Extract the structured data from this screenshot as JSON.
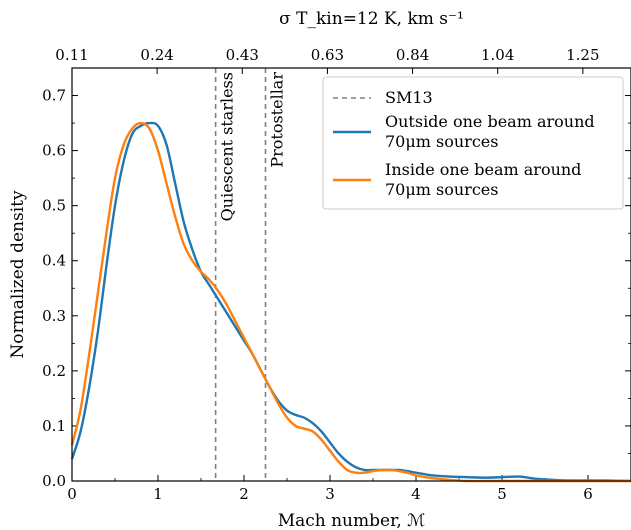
{
  "chart_data": {
    "type": "line",
    "xlabel": "Mach number, ℳ",
    "ylabel": "Normalized density",
    "top_xlabel": "σ T_kin=12 K,  km s⁻¹",
    "xlim": [
      0,
      6.5
    ],
    "ylim": [
      0,
      0.75
    ],
    "x_ticks": [
      "0",
      "1",
      "2",
      "3",
      "4",
      "5",
      "6"
    ],
    "y_ticks": [
      "0.0",
      "0.1",
      "0.2",
      "0.3",
      "0.4",
      "0.5",
      "0.6",
      "0.7"
    ],
    "top_ticks": [
      {
        "label": "0.11",
        "x": 0.0
      },
      {
        "label": "0.24",
        "x": 0.99
      },
      {
        "label": "0.43",
        "x": 1.98
      },
      {
        "label": "0.63",
        "x": 2.97
      },
      {
        "label": "0.84",
        "x": 3.96
      },
      {
        "label": "1.04",
        "x": 4.95
      },
      {
        "label": "1.25",
        "x": 5.94
      }
    ],
    "vlines": [
      {
        "x": 1.67,
        "label": "Quiescent starless"
      },
      {
        "x": 2.25,
        "label": "Protostellar"
      }
    ],
    "legend": {
      "placement": "top-right",
      "entries": [
        {
          "label_lines": [
            "SM13"
          ],
          "color": "#808080",
          "dash": true
        },
        {
          "label_lines": [
            "Outside one beam around",
            "70μm sources"
          ],
          "color": "#1f77b4",
          "dash": false
        },
        {
          "label_lines": [
            "Inside one beam around",
            "70μm sources"
          ],
          "color": "#ff7f0e",
          "dash": false
        }
      ]
    },
    "series": [
      {
        "name": "Outside one beam around 70μm sources",
        "color": "#1f77b4",
        "x": [
          0,
          0.1,
          0.2,
          0.3,
          0.4,
          0.5,
          0.6,
          0.7,
          0.8,
          0.9,
          1.0,
          1.1,
          1.2,
          1.3,
          1.4,
          1.5,
          1.6,
          1.7,
          1.8,
          1.9,
          2.0,
          2.1,
          2.2,
          2.3,
          2.4,
          2.5,
          2.6,
          2.7,
          2.8,
          2.9,
          3.0,
          3.1,
          3.2,
          3.3,
          3.4,
          3.5,
          3.6,
          3.7,
          3.8,
          3.9,
          4.0,
          4.2,
          4.4,
          4.6,
          4.8,
          5.0,
          5.2,
          5.4,
          5.6,
          5.8,
          6.0,
          6.2,
          6.5
        ],
        "values": [
          0.04,
          0.09,
          0.17,
          0.27,
          0.39,
          0.5,
          0.58,
          0.63,
          0.645,
          0.65,
          0.645,
          0.61,
          0.54,
          0.47,
          0.42,
          0.38,
          0.355,
          0.33,
          0.305,
          0.28,
          0.255,
          0.23,
          0.2,
          0.17,
          0.145,
          0.128,
          0.12,
          0.115,
          0.105,
          0.09,
          0.07,
          0.05,
          0.035,
          0.025,
          0.02,
          0.02,
          0.02,
          0.02,
          0.02,
          0.018,
          0.015,
          0.01,
          0.008,
          0.007,
          0.006,
          0.007,
          0.008,
          0.004,
          0.002,
          0.001,
          0.001,
          0.001,
          0.0
        ]
      },
      {
        "name": "Inside one beam around 70μm sources",
        "color": "#ff7f0e",
        "x": [
          0,
          0.1,
          0.2,
          0.3,
          0.4,
          0.5,
          0.6,
          0.7,
          0.8,
          0.9,
          1.0,
          1.1,
          1.2,
          1.3,
          1.4,
          1.5,
          1.6,
          1.7,
          1.8,
          1.9,
          2.0,
          2.1,
          2.2,
          2.3,
          2.4,
          2.5,
          2.6,
          2.7,
          2.8,
          2.9,
          3.0,
          3.1,
          3.2,
          3.3,
          3.4,
          3.5,
          3.6,
          3.7,
          3.8,
          3.9,
          4.0,
          4.2,
          4.4,
          4.6,
          4.8,
          5.0,
          5.2,
          5.4,
          5.6,
          5.8,
          6.0,
          6.2,
          6.5
        ],
        "values": [
          0.065,
          0.13,
          0.23,
          0.34,
          0.45,
          0.55,
          0.61,
          0.64,
          0.65,
          0.64,
          0.6,
          0.54,
          0.48,
          0.43,
          0.4,
          0.38,
          0.365,
          0.345,
          0.32,
          0.29,
          0.26,
          0.23,
          0.2,
          0.17,
          0.14,
          0.115,
          0.1,
          0.095,
          0.09,
          0.075,
          0.055,
          0.035,
          0.02,
          0.015,
          0.015,
          0.018,
          0.02,
          0.02,
          0.018,
          0.015,
          0.01,
          0.005,
          0.002,
          0.0,
          0.0,
          0.0,
          0.0,
          0.0,
          0.0,
          0.0,
          0.0,
          0.0,
          0.0
        ]
      }
    ]
  }
}
